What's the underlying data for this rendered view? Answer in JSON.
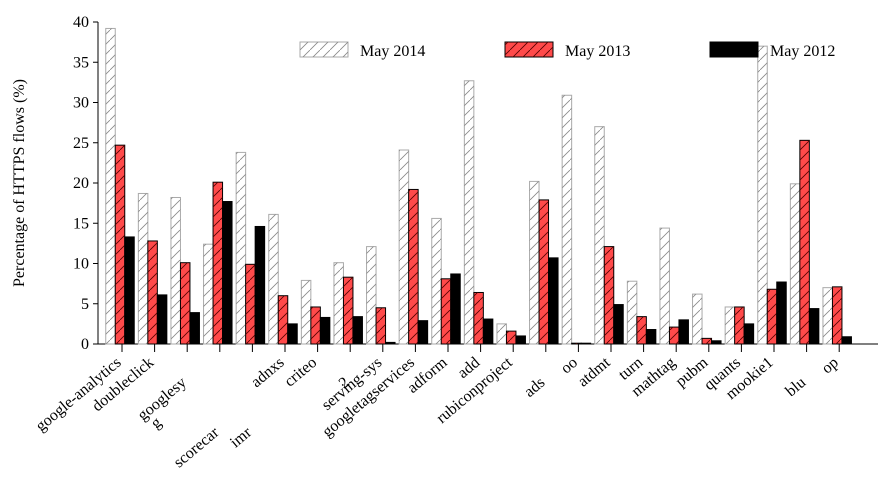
{
  "chart_data": {
    "type": "bar",
    "y_label": "Percentage of HTTPS flows (%)",
    "categories": [
      "google-analytics",
      "doubleclick",
      [
        "googlesy",
        "g"
      ],
      "scorecar",
      "imr",
      "adnxs",
      "criteo",
      "2",
      "serving-sys",
      "googletagservices",
      "adform",
      "add",
      "rubiconproject",
      "ads",
      "oo",
      "atdmt",
      "turn",
      "mathtag",
      "pubm",
      "quants",
      "mookie1",
      "blu",
      "op"
    ],
    "series": [
      {
        "name": "May 2014",
        "color": "#ffffff",
        "values": [
          39.2,
          18.7,
          18.2,
          12.4,
          23.8,
          16.1,
          7.9,
          10.1,
          12.1,
          24.1,
          15.6,
          32.7,
          2.5,
          20.2,
          30.9,
          27.0,
          7.8,
          14.4,
          6.2,
          4.6,
          37.0,
          19.9,
          7.0
        ]
      },
      {
        "name": "May 2013",
        "color": "#ff4a4a",
        "values": [
          24.7,
          12.8,
          10.1,
          20.1,
          9.9,
          6.0,
          4.6,
          8.3,
          4.5,
          19.2,
          8.1,
          6.4,
          1.6,
          17.9,
          0.1,
          12.1,
          3.4,
          2.1,
          0.7,
          4.6,
          6.8,
          25.3,
          7.1
        ]
      },
      {
        "name": "May 2012",
        "color": "#000000",
        "values": [
          13.3,
          6.1,
          3.9,
          17.7,
          14.6,
          2.5,
          3.3,
          3.4,
          0.2,
          2.9,
          8.7,
          3.1,
          1.0,
          10.7,
          0.1,
          4.9,
          1.8,
          3.0,
          0.4,
          2.5,
          7.7,
          4.4,
          0.9
        ]
      }
    ],
    "ylim": [
      0,
      40
    ],
    "yticks": [
      0,
      5,
      10,
      15,
      20,
      25,
      30,
      35,
      40
    ]
  }
}
